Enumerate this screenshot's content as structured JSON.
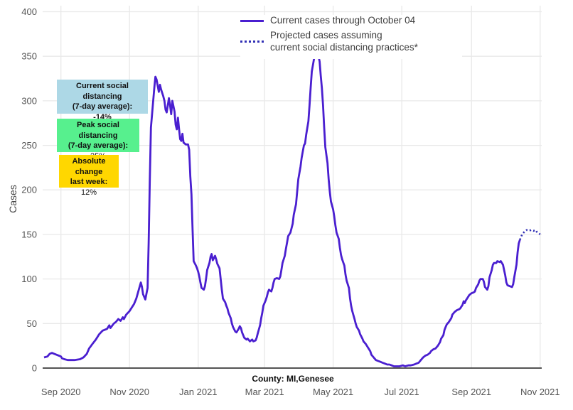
{
  "y_axis_title": "Cases",
  "footnote": "County: MI,Genesee",
  "legend": {
    "items": [
      {
        "label": "Current cases through October 04",
        "style": "solid",
        "color": "#4a1fd0"
      },
      {
        "label_line1": "Projected cases assuming",
        "label_line2": "current social distancing practices*",
        "style": "dotted",
        "color": "#3130b5"
      }
    ]
  },
  "annotations": {
    "current": {
      "line1": "Current social distancing",
      "line2": "(7-day average):",
      "value": "-14%",
      "bg": "#ADD8E6"
    },
    "peak": {
      "line1": "Peak social distancing",
      "line2": "(7-day average):",
      "value": "25%",
      "bg": "#57F08E"
    },
    "absolute": {
      "line1": "Absolute change",
      "line2": "last week:",
      "value": "12%",
      "bg": "#FFD700"
    }
  },
  "chart_data": {
    "type": "line",
    "title": "",
    "xlabel": "",
    "ylabel": "Cases",
    "ylim": [
      0,
      400
    ],
    "grid": true,
    "legend_position": "top-center",
    "x_unit": "days since 2020-08-17",
    "x_ticks": [
      {
        "label": "Sep 2020",
        "day": 15
      },
      {
        "label": "Nov 2020",
        "day": 76
      },
      {
        "label": "Jan 2021",
        "day": 137
      },
      {
        "label": "Mar 2021",
        "day": 196
      },
      {
        "label": "May 2021",
        "day": 257
      },
      {
        "label": "Jul 2021",
        "day": 318
      },
      {
        "label": "Sep 2021",
        "day": 380
      },
      {
        "label": "Nov 2021",
        "day": 441
      }
    ],
    "y_ticks": [
      0,
      50,
      100,
      150,
      200,
      250,
      300,
      350,
      400
    ],
    "series": [
      {
        "name": "Current cases through October 04",
        "style": "solid",
        "color": "#4a1fd0",
        "points": [
          [
            0,
            12
          ],
          [
            3,
            13
          ],
          [
            5,
            16
          ],
          [
            7,
            17
          ],
          [
            9,
            16
          ],
          [
            11,
            15
          ],
          [
            15,
            13
          ],
          [
            16,
            11
          ],
          [
            18,
            10
          ],
          [
            21,
            9
          ],
          [
            27,
            9
          ],
          [
            32,
            10
          ],
          [
            35,
            12
          ],
          [
            38,
            16
          ],
          [
            40,
            22
          ],
          [
            43,
            27
          ],
          [
            46,
            32
          ],
          [
            49,
            38
          ],
          [
            52,
            42
          ],
          [
            56,
            44
          ],
          [
            58,
            48
          ],
          [
            59,
            45
          ],
          [
            62,
            50
          ],
          [
            64,
            52
          ],
          [
            66,
            55
          ],
          [
            68,
            53
          ],
          [
            70,
            57
          ],
          [
            71,
            55
          ],
          [
            73,
            60
          ],
          [
            76,
            64
          ],
          [
            78,
            68
          ],
          [
            80,
            72
          ],
          [
            82,
            78
          ],
          [
            84,
            87
          ],
          [
            86,
            96
          ],
          [
            87,
            91
          ],
          [
            88,
            83
          ],
          [
            90,
            77
          ],
          [
            92,
            90
          ],
          [
            93,
            140
          ],
          [
            94,
            210
          ],
          [
            95,
            270
          ],
          [
            97,
            300
          ],
          [
            98,
            315
          ],
          [
            99,
            327
          ],
          [
            100,
            324
          ],
          [
            102,
            310
          ],
          [
            103,
            318
          ],
          [
            104,
            313
          ],
          [
            106,
            305
          ],
          [
            107,
            300
          ],
          [
            108,
            290
          ],
          [
            109,
            287
          ],
          [
            111,
            303
          ],
          [
            112,
            295
          ],
          [
            113,
            285
          ],
          [
            114,
            300
          ],
          [
            116,
            288
          ],
          [
            117,
            273
          ],
          [
            118,
            268
          ],
          [
            119,
            281
          ],
          [
            120,
            268
          ],
          [
            121,
            257
          ],
          [
            122,
            255
          ],
          [
            123,
            263
          ],
          [
            124,
            253
          ],
          [
            125,
            252
          ],
          [
            126,
            251
          ],
          [
            128,
            251
          ],
          [
            129,
            245
          ],
          [
            130,
            215
          ],
          [
            131,
            195
          ],
          [
            132,
            155
          ],
          [
            133,
            120
          ],
          [
            135,
            115
          ],
          [
            136,
            112
          ],
          [
            137,
            108
          ],
          [
            138,
            103
          ],
          [
            139,
            96
          ],
          [
            140,
            90
          ],
          [
            142,
            88
          ],
          [
            143,
            92
          ],
          [
            144,
            100
          ],
          [
            145,
            110
          ],
          [
            147,
            118
          ],
          [
            148,
            125
          ],
          [
            149,
            128
          ],
          [
            150,
            121
          ],
          [
            152,
            126
          ],
          [
            153,
            122
          ],
          [
            154,
            117
          ],
          [
            156,
            112
          ],
          [
            157,
            100
          ],
          [
            158,
            88
          ],
          [
            159,
            78
          ],
          [
            161,
            74
          ],
          [
            162,
            70
          ],
          [
            163,
            67
          ],
          [
            164,
            62
          ],
          [
            166,
            56
          ],
          [
            167,
            50
          ],
          [
            168,
            46
          ],
          [
            170,
            41
          ],
          [
            171,
            40
          ],
          [
            173,
            44
          ],
          [
            174,
            47
          ],
          [
            175,
            45
          ],
          [
            176,
            40
          ],
          [
            178,
            34
          ],
          [
            180,
            32
          ],
          [
            181,
            33
          ],
          [
            183,
            30
          ],
          [
            184,
            31
          ],
          [
            185,
            32
          ],
          [
            186,
            30
          ],
          [
            188,
            31
          ],
          [
            189,
            34
          ],
          [
            190,
            39
          ],
          [
            192,
            48
          ],
          [
            193,
            56
          ],
          [
            194,
            62
          ],
          [
            195,
            70
          ],
          [
            197,
            76
          ],
          [
            198,
            80
          ],
          [
            199,
            85
          ],
          [
            200,
            88
          ],
          [
            202,
            86
          ],
          [
            203,
            90
          ],
          [
            204,
            96
          ],
          [
            205,
            100
          ],
          [
            207,
            101
          ],
          [
            209,
            100
          ],
          [
            210,
            103
          ],
          [
            211,
            110
          ],
          [
            212,
            118
          ],
          [
            214,
            126
          ],
          [
            215,
            134
          ],
          [
            216,
            141
          ],
          [
            217,
            148
          ],
          [
            219,
            152
          ],
          [
            220,
            157
          ],
          [
            221,
            162
          ],
          [
            222,
            172
          ],
          [
            224,
            184
          ],
          [
            225,
            198
          ],
          [
            226,
            212
          ],
          [
            228,
            226
          ],
          [
            229,
            236
          ],
          [
            230,
            243
          ],
          [
            231,
            250
          ],
          [
            232,
            252
          ],
          [
            233,
            262
          ],
          [
            235,
            277
          ],
          [
            236,
            295
          ],
          [
            237,
            315
          ],
          [
            238,
            333
          ],
          [
            240,
            347
          ],
          [
            241,
            358
          ],
          [
            242,
            364
          ],
          [
            243,
            356
          ],
          [
            245,
            344
          ],
          [
            246,
            328
          ],
          [
            247,
            314
          ],
          [
            248,
            295
          ],
          [
            249,
            270
          ],
          [
            250,
            248
          ],
          [
            252,
            230
          ],
          [
            253,
            212
          ],
          [
            254,
            198
          ],
          [
            255,
            187
          ],
          [
            257,
            178
          ],
          [
            258,
            170
          ],
          [
            259,
            160
          ],
          [
            260,
            152
          ],
          [
            262,
            145
          ],
          [
            263,
            135
          ],
          [
            264,
            127
          ],
          [
            265,
            122
          ],
          [
            267,
            115
          ],
          [
            268,
            105
          ],
          [
            269,
            98
          ],
          [
            271,
            90
          ],
          [
            272,
            78
          ],
          [
            273,
            70
          ],
          [
            274,
            64
          ],
          [
            276,
            55
          ],
          [
            277,
            50
          ],
          [
            278,
            46
          ],
          [
            280,
            42
          ],
          [
            281,
            38
          ],
          [
            283,
            33
          ],
          [
            284,
            30
          ],
          [
            286,
            27
          ],
          [
            288,
            23
          ],
          [
            290,
            19
          ],
          [
            291,
            15
          ],
          [
            293,
            12
          ],
          [
            295,
            9
          ],
          [
            297,
            8
          ],
          [
            299,
            7
          ],
          [
            301,
            6
          ],
          [
            303,
            5
          ],
          [
            305,
            4
          ],
          [
            307,
            4
          ],
          [
            309,
            3
          ],
          [
            311,
            2
          ],
          [
            313,
            2
          ],
          [
            316,
            2
          ],
          [
            319,
            3
          ],
          [
            321,
            2
          ],
          [
            324,
            3
          ],
          [
            326,
            3
          ],
          [
            329,
            4
          ],
          [
            331,
            5
          ],
          [
            333,
            6
          ],
          [
            335,
            9
          ],
          [
            337,
            12
          ],
          [
            339,
            14
          ],
          [
            341,
            15
          ],
          [
            343,
            17
          ],
          [
            344,
            19
          ],
          [
            346,
            21
          ],
          [
            348,
            22
          ],
          [
            350,
            25
          ],
          [
            352,
            29
          ],
          [
            353,
            33
          ],
          [
            355,
            37
          ],
          [
            356,
            43
          ],
          [
            357,
            46
          ],
          [
            358,
            49
          ],
          [
            360,
            52
          ],
          [
            362,
            56
          ],
          [
            363,
            60
          ],
          [
            365,
            63
          ],
          [
            367,
            65
          ],
          [
            369,
            66
          ],
          [
            370,
            67
          ],
          [
            372,
            71
          ],
          [
            373,
            75
          ],
          [
            374,
            73
          ],
          [
            375,
            76
          ],
          [
            377,
            80
          ],
          [
            378,
            82
          ],
          [
            380,
            84
          ],
          [
            382,
            85
          ],
          [
            383,
            86
          ],
          [
            384,
            90
          ],
          [
            386,
            94
          ],
          [
            387,
            98
          ],
          [
            388,
            100
          ],
          [
            390,
            100
          ],
          [
            391,
            97
          ],
          [
            392,
            91
          ],
          [
            394,
            88
          ],
          [
            395,
            92
          ],
          [
            396,
            102
          ],
          [
            398,
            110
          ],
          [
            399,
            116
          ],
          [
            400,
            118
          ],
          [
            402,
            118
          ],
          [
            403,
            120
          ],
          [
            405,
            119
          ],
          [
            406,
            120
          ],
          [
            407,
            118
          ],
          [
            408,
            116
          ],
          [
            410,
            104
          ],
          [
            411,
            96
          ],
          [
            412,
            93
          ],
          [
            414,
            92
          ],
          [
            416,
            91
          ],
          [
            417,
            94
          ],
          [
            418,
            102
          ],
          [
            420,
            116
          ],
          [
            421,
            130
          ],
          [
            422,
            140
          ],
          [
            423,
            144
          ]
        ]
      },
      {
        "name": "Projected cases assuming current social distancing practices*",
        "style": "dotted",
        "color": "#3130b5",
        "points": [
          [
            423,
            144
          ],
          [
            424,
            147
          ],
          [
            425,
            150
          ],
          [
            427,
            153
          ],
          [
            429,
            155
          ],
          [
            431,
            154
          ],
          [
            433,
            155
          ],
          [
            435,
            154
          ],
          [
            437,
            155
          ],
          [
            438,
            153
          ],
          [
            439,
            152
          ],
          [
            441,
            150
          ]
        ]
      }
    ]
  }
}
